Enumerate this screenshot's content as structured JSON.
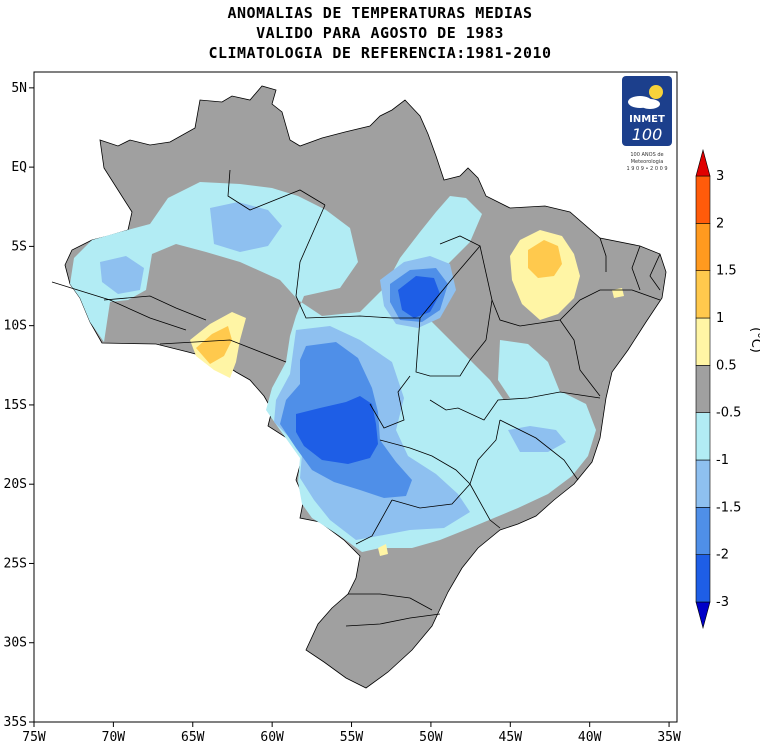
{
  "title": {
    "line1": "ANOMALIAS DE TEMPERATURAS MEDIAS",
    "line2": "VALIDO PARA AGOSTO DE 1983",
    "line3": "CLIMATOLOGIA DE REFERENCIA:1981-2010"
  },
  "axes": {
    "lat_ticks": [
      {
        "value": 5,
        "label": "5N"
      },
      {
        "value": 0,
        "label": "EQ"
      },
      {
        "value": -5,
        "label": "5S"
      },
      {
        "value": -10,
        "label": "10S"
      },
      {
        "value": -15,
        "label": "15S"
      },
      {
        "value": -20,
        "label": "20S"
      },
      {
        "value": -25,
        "label": "25S"
      },
      {
        "value": -30,
        "label": "30S"
      },
      {
        "value": -35,
        "label": "35S"
      }
    ],
    "lon_ticks": [
      {
        "value": -75,
        "label": "75W"
      },
      {
        "value": -70,
        "label": "70W"
      },
      {
        "value": -65,
        "label": "65W"
      },
      {
        "value": -60,
        "label": "60W"
      },
      {
        "value": -55,
        "label": "55W"
      },
      {
        "value": -50,
        "label": "50W"
      },
      {
        "value": -45,
        "label": "45W"
      },
      {
        "value": -40,
        "label": "40W"
      },
      {
        "value": -35,
        "label": "35W"
      }
    ],
    "lon_range": [
      -75,
      -34.5
    ],
    "lat_range": [
      -35,
      6
    ]
  },
  "colorbar": {
    "unit": "(°C)",
    "levels": [
      "3",
      "2",
      "1.5",
      "1",
      "0.5",
      "-0.5",
      "-1",
      "-1.5",
      "-2",
      "-3"
    ],
    "colors": [
      "#0000c8",
      "#1e5ee6",
      "#4f8fe8",
      "#8ec0f0",
      "#b2ecf4",
      "#a0a0a0",
      "#fff5a5",
      "#ffc94d",
      "#ff9a1f",
      "#ff5b0a",
      "#e00000"
    ]
  },
  "logo": {
    "name": "INMET",
    "number": "100",
    "caption1": "100 ANOS de",
    "caption2": "Meteorologia",
    "caption3": "1 9 0 9 • 2 0 0 9",
    "icon": "sun-cloud-icon",
    "bg_color": "#1c3f8c"
  }
}
